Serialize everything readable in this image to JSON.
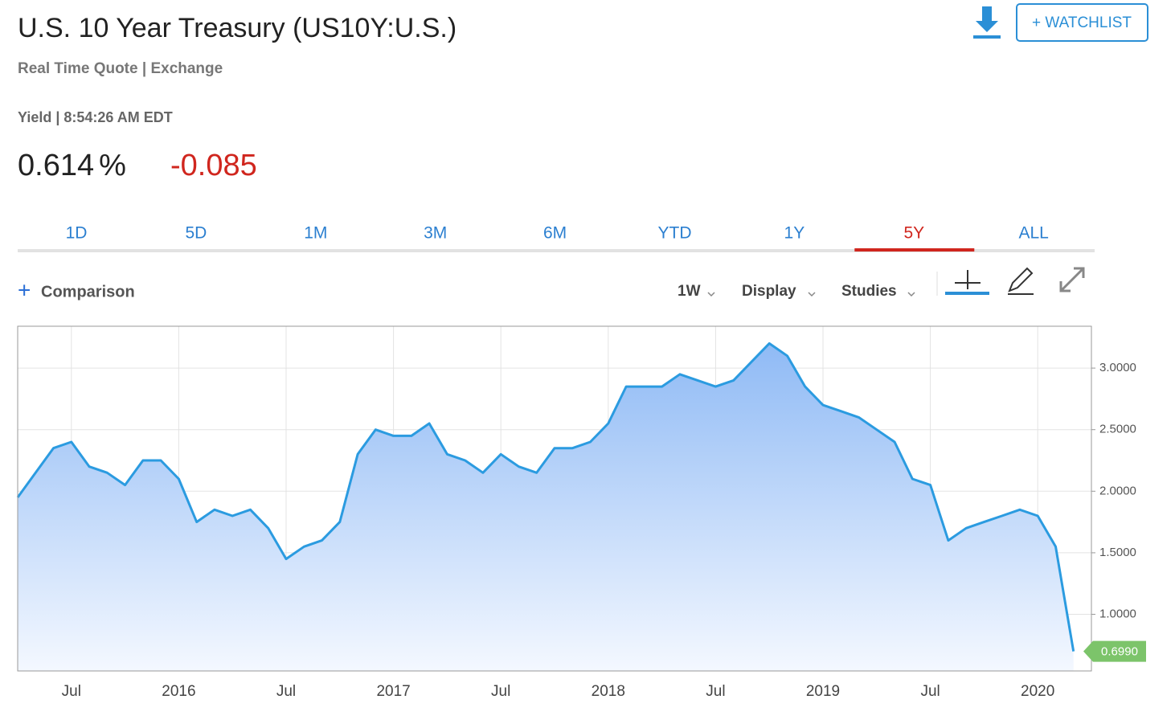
{
  "header": {
    "title": "U.S. 10 Year Treasury (US10Y:U.S.)",
    "subtitle": "Real Time Quote | Exchange",
    "watchlist": "+ WATCHLIST",
    "quote_time": "Yield | 8:54:26 AM EDT",
    "price": "0.614",
    "unit": "%",
    "change": "-0.085"
  },
  "tabs": {
    "items": [
      "1D",
      "5D",
      "1M",
      "3M",
      "6M",
      "YTD",
      "1Y",
      "5Y",
      "ALL"
    ],
    "active": 7
  },
  "toolbar": {
    "comparison": "Comparison",
    "interval": "1W",
    "display": "Display",
    "studies": "Studies"
  },
  "chart_data": {
    "type": "area",
    "color": "#2b9be0",
    "grid": true,
    "x": [
      "2015-04",
      "2015-05",
      "2015-06",
      "2015-07",
      "2015-08",
      "2015-09",
      "2015-10",
      "2015-11",
      "2015-12",
      "2016-01",
      "2016-02",
      "2016-03",
      "2016-04",
      "2016-05",
      "2016-06",
      "2016-07",
      "2016-08",
      "2016-09",
      "2016-10",
      "2016-11",
      "2016-12",
      "2017-01",
      "2017-02",
      "2017-03",
      "2017-04",
      "2017-05",
      "2017-06",
      "2017-07",
      "2017-08",
      "2017-09",
      "2017-10",
      "2017-11",
      "2017-12",
      "2018-01",
      "2018-02",
      "2018-03",
      "2018-04",
      "2018-05",
      "2018-06",
      "2018-07",
      "2018-08",
      "2018-09",
      "2018-10",
      "2018-11",
      "2018-12",
      "2019-01",
      "2019-02",
      "2019-03",
      "2019-04",
      "2019-05",
      "2019-06",
      "2019-07",
      "2019-08",
      "2019-09",
      "2019-10",
      "2019-11",
      "2019-12",
      "2020-01",
      "2020-02",
      "2020-03"
    ],
    "values": [
      1.95,
      2.15,
      2.35,
      2.4,
      2.2,
      2.15,
      2.05,
      2.25,
      2.25,
      2.1,
      1.75,
      1.85,
      1.8,
      1.85,
      1.7,
      1.45,
      1.55,
      1.6,
      1.75,
      2.3,
      2.5,
      2.45,
      2.45,
      2.55,
      2.3,
      2.25,
      2.15,
      2.3,
      2.2,
      2.15,
      2.35,
      2.35,
      2.4,
      2.55,
      2.85,
      2.85,
      2.85,
      2.95,
      2.9,
      2.85,
      2.9,
      3.05,
      3.2,
      3.1,
      2.85,
      2.7,
      2.65,
      2.6,
      2.5,
      2.4,
      2.1,
      2.05,
      1.6,
      1.7,
      1.75,
      1.8,
      1.85,
      1.8,
      1.55,
      0.699
    ],
    "value_labels": [
      null,
      null,
      null,
      null,
      null,
      null,
      null,
      null,
      null,
      null,
      null,
      null,
      null,
      null,
      null,
      null,
      null,
      null,
      null,
      null,
      null,
      null,
      null,
      null,
      null,
      null,
      null,
      null,
      null,
      null,
      null,
      null,
      null,
      null,
      null,
      null,
      null,
      null,
      null,
      null,
      null,
      null,
      null,
      null,
      null,
      null,
      null,
      null,
      null,
      null,
      null,
      null,
      null,
      null,
      null,
      null,
      null,
      null,
      null,
      "0.6990"
    ],
    "xlim": [
      "2015-04",
      "2020-04"
    ],
    "xticks": [
      {
        "value": "2015-07",
        "label": "Jul"
      },
      {
        "value": "2016-01",
        "label": "2016"
      },
      {
        "value": "2016-07",
        "label": "Jul"
      },
      {
        "value": "2017-01",
        "label": "2017"
      },
      {
        "value": "2017-07",
        "label": "Jul"
      },
      {
        "value": "2018-01",
        "label": "2018"
      },
      {
        "value": "2018-07",
        "label": "Jul"
      },
      {
        "value": "2019-01",
        "label": "2019"
      },
      {
        "value": "2019-07",
        "label": "Jul"
      },
      {
        "value": "2020-01",
        "label": "2020"
      }
    ],
    "ylim": [
      0.54,
      3.34
    ],
    "yticks": [
      {
        "value": 1,
        "label": "1.0000"
      },
      {
        "value": 1.5,
        "label": "1.5000"
      },
      {
        "value": 2,
        "label": "2.0000"
      },
      {
        "value": 2.5,
        "label": "2.5000"
      },
      {
        "value": 3,
        "label": "3.0000"
      }
    ]
  }
}
